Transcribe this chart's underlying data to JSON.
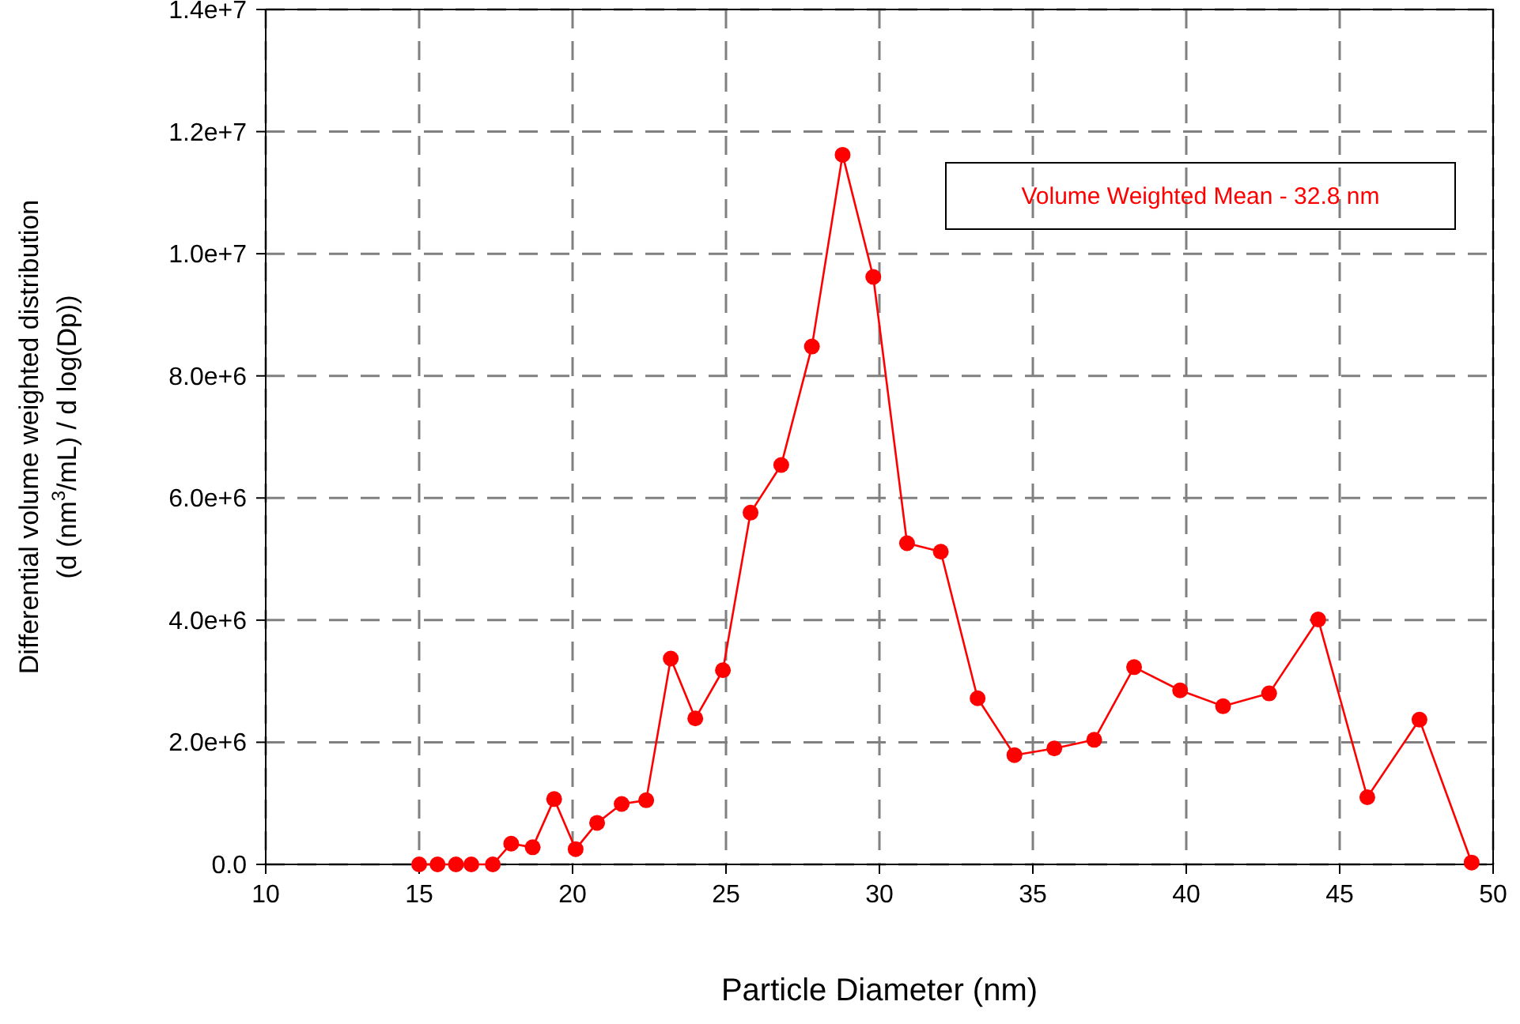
{
  "chart_data": {
    "type": "line",
    "xlabel": "Particle Diameter (nm)",
    "ylabel": "Differential volume weighted distribution\n(d (nm$^{3}$/mL) / d log(Dp))",
    "x": [
      15.0,
      15.6,
      16.2,
      16.7,
      17.4,
      18.0,
      18.7,
      19.4,
      20.1,
      20.8,
      21.6,
      22.4,
      23.2,
      24.0,
      24.9,
      25.8,
      26.8,
      27.8,
      28.8,
      29.8,
      30.9,
      32.0,
      33.2,
      34.4,
      35.7,
      37.0,
      38.3,
      39.8,
      41.2,
      42.7,
      44.3,
      45.9,
      47.6,
      49.3
    ],
    "series": [
      {
        "color": "#ff0000",
        "values": [
          0.0,
          0.0,
          0.0,
          0.0,
          0.0,
          340000,
          280000,
          1070000,
          250000,
          680000,
          990000,
          1050000,
          3370000,
          2390000,
          3180000,
          5760000,
          6540000,
          8480000,
          11620000,
          9620000,
          5260000,
          5120000,
          2720000,
          1790000,
          1900000,
          2040000,
          3230000,
          2850000,
          2590000,
          2800000,
          4010000,
          1100000,
          2370000,
          30000
        ]
      }
    ],
    "xlim": [
      10,
      50
    ],
    "xticks": [
      10,
      15,
      20,
      25,
      30,
      35,
      40,
      45,
      50
    ],
    "ylim": [
      0,
      14000000
    ],
    "yticks": [
      {
        "value": 0,
        "label": "0.0"
      },
      {
        "value": 2000000,
        "label": "2.0e+6"
      },
      {
        "value": 4000000,
        "label": "4.0e+6"
      },
      {
        "value": 6000000,
        "label": "6.0e+6"
      },
      {
        "value": 8000000,
        "label": "8.0e+6"
      },
      {
        "value": 10000000,
        "label": "1.0e+7"
      },
      {
        "value": 12000000,
        "label": "1.2e+7"
      },
      {
        "value": 14000000,
        "label": "1.4e+7"
      }
    ],
    "grid": true,
    "marker": "circle",
    "line_style": "solid",
    "annotations": [
      "Volume Weighted Mean - 32.8 nm"
    ]
  }
}
